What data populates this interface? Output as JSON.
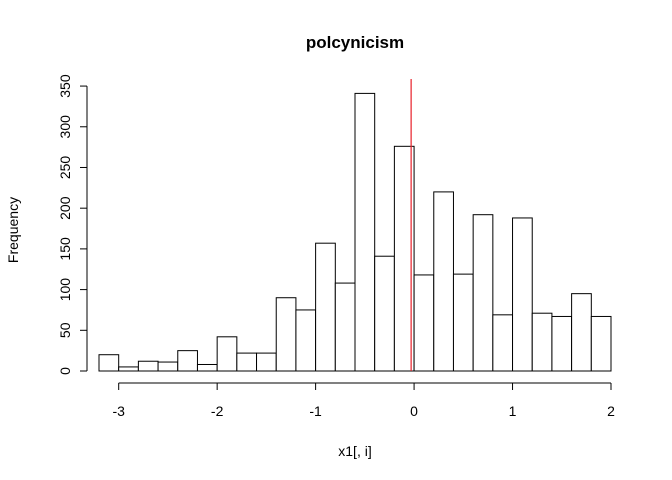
{
  "chart_data": {
    "type": "bar",
    "title": "polcynicism",
    "xlabel": "x1[, i]",
    "ylabel": "Frequency",
    "bin_width": 0.2,
    "bins": [
      {
        "x0": -3.2,
        "x1": -3.0,
        "value": 20
      },
      {
        "x0": -3.0,
        "x1": -2.8,
        "value": 5
      },
      {
        "x0": -2.8,
        "x1": -2.6,
        "value": 12
      },
      {
        "x0": -2.6,
        "x1": -2.4,
        "value": 11
      },
      {
        "x0": -2.4,
        "x1": -2.2,
        "value": 25
      },
      {
        "x0": -2.2,
        "x1": -2.0,
        "value": 8
      },
      {
        "x0": -2.0,
        "x1": -1.8,
        "value": 42
      },
      {
        "x0": -1.8,
        "x1": -1.6,
        "value": 22
      },
      {
        "x0": -1.6,
        "x1": -1.4,
        "value": 22
      },
      {
        "x0": -1.4,
        "x1": -1.2,
        "value": 90
      },
      {
        "x0": -1.2,
        "x1": -1.0,
        "value": 75
      },
      {
        "x0": -1.0,
        "x1": -0.8,
        "value": 157
      },
      {
        "x0": -0.8,
        "x1": -0.6,
        "value": 108
      },
      {
        "x0": -0.6,
        "x1": -0.4,
        "value": 341
      },
      {
        "x0": -0.4,
        "x1": -0.2,
        "value": 141
      },
      {
        "x0": -0.2,
        "x1": 0.0,
        "value": 276
      },
      {
        "x0": 0.0,
        "x1": 0.2,
        "value": 118
      },
      {
        "x0": 0.2,
        "x1": 0.4,
        "value": 220
      },
      {
        "x0": 0.4,
        "x1": 0.6,
        "value": 119
      },
      {
        "x0": 0.6,
        "x1": 0.8,
        "value": 192
      },
      {
        "x0": 0.8,
        "x1": 1.0,
        "value": 69
      },
      {
        "x0": 1.0,
        "x1": 1.2,
        "value": 188
      },
      {
        "x0": 1.2,
        "x1": 1.4,
        "value": 71
      },
      {
        "x0": 1.4,
        "x1": 1.6,
        "value": 67
      },
      {
        "x0": 1.6,
        "x1": 1.8,
        "value": 95
      },
      {
        "x0": 1.8,
        "x1": 2.0,
        "value": 67
      }
    ],
    "xlim": [
      -3.2,
      2.0
    ],
    "ylim": [
      0,
      355
    ],
    "xticks": [
      -3,
      -2,
      -1,
      0,
      1,
      2
    ],
    "yticks": [
      0,
      50,
      100,
      150,
      200,
      250,
      300,
      350
    ],
    "reference_line": {
      "x": -0.03,
      "color": "#e8202a"
    },
    "bar_fill": "#ffffff",
    "bar_stroke": "#000000",
    "grid": false,
    "legend": "none"
  }
}
